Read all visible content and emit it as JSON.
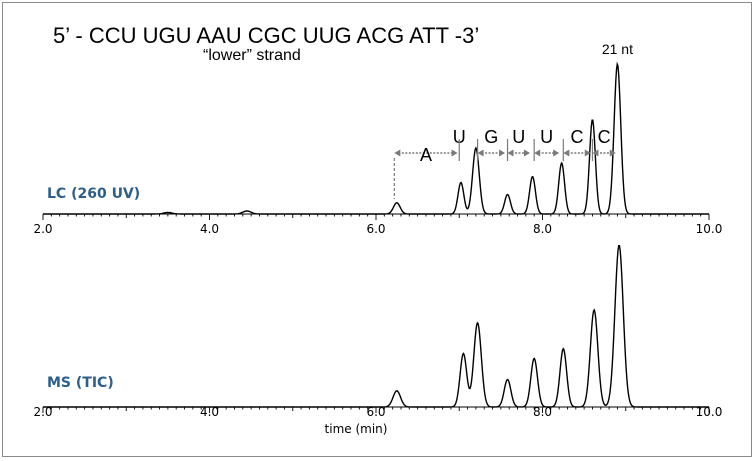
{
  "header": {
    "sequence": "5’ - CCU UGU AAU CGC UUG ACG ATT -3’",
    "strand": "“lower” strand"
  },
  "chart_data": [
    {
      "type": "line",
      "series_label": "LC (260 UV)",
      "xlim": [
        2.0,
        10.0
      ],
      "x_ticks": [
        "2.0",
        "4.0",
        "6.0",
        "8.0",
        "10.0"
      ],
      "xlabel": "",
      "peaks": [
        {
          "x": 3.5,
          "height": 0.01,
          "width": 0.05
        },
        {
          "x": 4.45,
          "height": 0.02,
          "width": 0.05
        },
        {
          "x": 6.25,
          "height": 0.075,
          "width": 0.04
        },
        {
          "x": 7.02,
          "height": 0.21,
          "width": 0.035
        },
        {
          "x": 7.2,
          "height": 0.44,
          "width": 0.04
        },
        {
          "x": 7.58,
          "height": 0.13,
          "width": 0.035
        },
        {
          "x": 7.88,
          "height": 0.25,
          "width": 0.035
        },
        {
          "x": 8.23,
          "height": 0.34,
          "width": 0.035
        },
        {
          "x": 8.6,
          "height": 0.63,
          "width": 0.035
        },
        {
          "x": 8.9,
          "height": 1.0,
          "width": 0.04
        }
      ],
      "annotations": {
        "bases": [
          {
            "label": "A",
            "from": 6.22,
            "to": 6.98
          },
          {
            "label": "U",
            "from": 7.0,
            "to": 7.0
          },
          {
            "label": "G",
            "from": 7.22,
            "to": 7.55
          },
          {
            "label": "U",
            "from": 7.58,
            "to": 7.85
          },
          {
            "label": "U",
            "from": 7.9,
            "to": 8.2
          },
          {
            "label": "C",
            "from": 8.25,
            "to": 8.58
          },
          {
            "label": "C",
            "from": 8.6,
            "to": 8.88
          }
        ],
        "peak_label": {
          "text": "21 nt",
          "x": 8.9
        }
      }
    },
    {
      "type": "line",
      "series_label": "MS (TIC)",
      "xlim": [
        2.0,
        10.0
      ],
      "x_ticks": [
        "2.0",
        "4.0",
        "6.0",
        "8.0",
        "10.0"
      ],
      "xlabel": "time (min)",
      "peaks": [
        {
          "x": 6.25,
          "height": 0.1,
          "width": 0.045
        },
        {
          "x": 7.05,
          "height": 0.33,
          "width": 0.04
        },
        {
          "x": 7.22,
          "height": 0.52,
          "width": 0.045
        },
        {
          "x": 7.58,
          "height": 0.17,
          "width": 0.04
        },
        {
          "x": 7.9,
          "height": 0.3,
          "width": 0.04
        },
        {
          "x": 8.25,
          "height": 0.36,
          "width": 0.04
        },
        {
          "x": 8.62,
          "height": 0.6,
          "width": 0.045
        },
        {
          "x": 8.92,
          "height": 1.0,
          "width": 0.05
        }
      ]
    }
  ],
  "colors": {
    "series_label": "#2d5f8a",
    "annotation_arrow": "#7a7a7a",
    "trace": "#000000"
  }
}
